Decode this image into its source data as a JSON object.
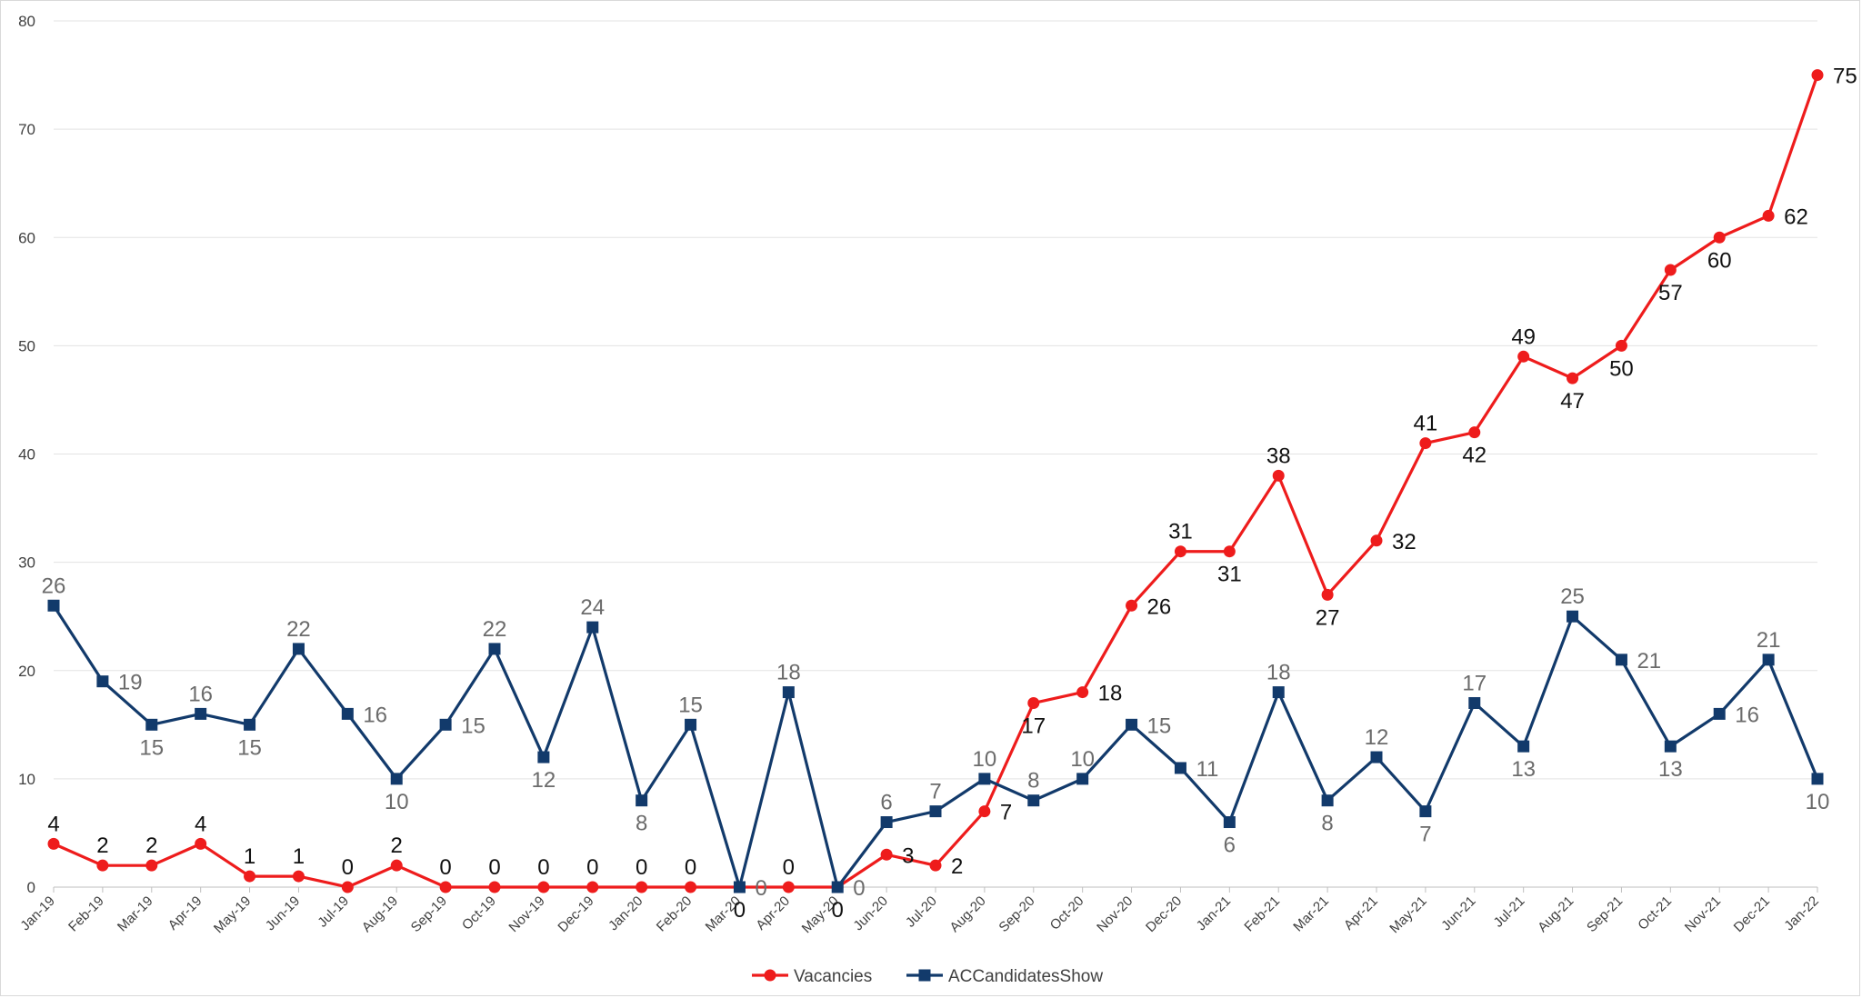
{
  "chart_data": {
    "type": "line",
    "title": "",
    "xlabel": "",
    "ylabel": "",
    "ylim": [
      0,
      80
    ],
    "yticks": [
      "0",
      "10",
      "20",
      "30",
      "40",
      "50",
      "60",
      "70",
      "80"
    ],
    "grid": true,
    "legend_position": "bottom",
    "categories": [
      "Jan-19",
      "Feb-19",
      "Mar-19",
      "Apr-19",
      "May-19",
      "Jun-19",
      "Jul-19",
      "Aug-19",
      "Sep-19",
      "Oct-19",
      "Nov-19",
      "Dec-19",
      "Jan-20",
      "Feb-20",
      "Mar-20",
      "Apr-20",
      "May-20",
      "Jun-20",
      "Jul-20",
      "Aug-20",
      "Sep-20",
      "Oct-20",
      "Nov-20",
      "Dec-20",
      "Jan-21",
      "Feb-21",
      "Mar-21",
      "Apr-21",
      "May-21",
      "Jun-21",
      "Jul-21",
      "Aug-21",
      "Sep-21",
      "Oct-21",
      "Nov-21",
      "Dec-21",
      "Jan-22"
    ],
    "series": [
      {
        "name": "Vacancies",
        "color": "#ee1c1c",
        "marker": "circle",
        "values": [
          4,
          2,
          2,
          4,
          1,
          1,
          0,
          2,
          0,
          0,
          0,
          0,
          0,
          0,
          0,
          0,
          0,
          3,
          2,
          7,
          17,
          18,
          26,
          31,
          31,
          38,
          27,
          32,
          41,
          42,
          49,
          47,
          50,
          57,
          60,
          62,
          75
        ]
      },
      {
        "name": "ACCandidatesShow",
        "color": "#123a6b",
        "marker": "square",
        "values": [
          26,
          19,
          15,
          16,
          15,
          22,
          16,
          10,
          15,
          22,
          12,
          24,
          8,
          15,
          0,
          18,
          0,
          6,
          7,
          10,
          8,
          10,
          15,
          11,
          6,
          18,
          8,
          12,
          7,
          17,
          13,
          25,
          21,
          13,
          16,
          21,
          10
        ]
      }
    ]
  }
}
